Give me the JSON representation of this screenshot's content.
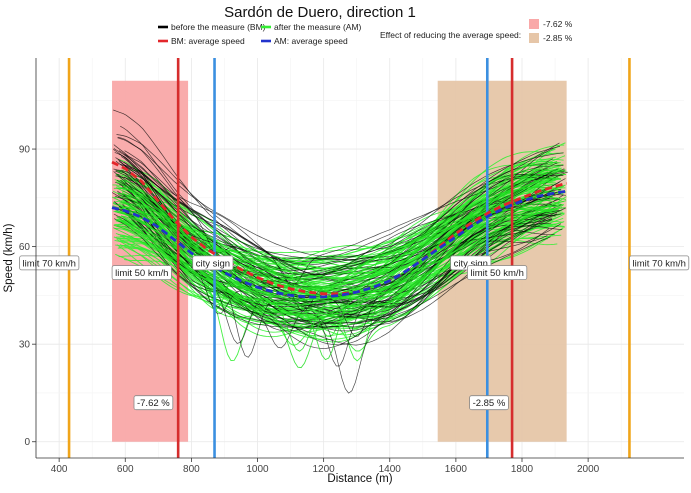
{
  "chart_data": {
    "type": "line",
    "title": "Sardón de Duero, direction 1",
    "xlabel": "Distance (m)",
    "ylabel": "Speed (km/h)",
    "xlim": [
      330,
      2290
    ],
    "ylim": [
      -5,
      118
    ],
    "xticks": [
      400,
      600,
      800,
      1000,
      1200,
      1400,
      1600,
      1800,
      2000
    ],
    "yticks": [
      0,
      30,
      60,
      90
    ],
    "grid": true,
    "legend": {
      "placement": "top-right",
      "lines": [
        {
          "label": "before the measure (BM)",
          "color": "#000000"
        },
        {
          "label": "after the measure (AM)",
          "color": "#33ee33"
        },
        {
          "label": "BM: average speed",
          "color": "#e3262b"
        },
        {
          "label": "AM: average speed",
          "color": "#2233cc"
        }
      ],
      "fill_title": "Effect of reducing the average speed:",
      "fills": [
        {
          "label": "-7.62 %",
          "color": "#f9a8a8"
        },
        {
          "label": "-2.85 %",
          "color": "#e6c6a8"
        }
      ]
    },
    "zones": [
      {
        "x_start": 560,
        "x_end": 790,
        "y_top": 111,
        "color": "#f9a8a8",
        "label": "-7.62 %",
        "label_x": 685,
        "label_y": 12
      },
      {
        "x_start": 1545,
        "x_end": 1935,
        "y_top": 111,
        "color": "#e6c6a8",
        "label": "-2.85 %",
        "label_x": 1700,
        "label_y": 12
      }
    ],
    "vlines": [
      {
        "x": 430,
        "color": "#f0a51a",
        "label": "limit 70 km/h",
        "label_x": 370,
        "label_y": 55
      },
      {
        "x": 760,
        "color": "#d62d2d",
        "label": "limit 50 km/h",
        "label_x": 650,
        "label_y": 52
      },
      {
        "x": 870,
        "color": "#3b8fe0",
        "label": "city sign",
        "label_x": 865,
        "label_y": 55
      },
      {
        "x": 1695,
        "color": "#3b8fe0",
        "label": "city sign",
        "label_x": 1645,
        "label_y": 55
      },
      {
        "x": 1770,
        "color": "#d62d2d",
        "label": "limit 50 km/h",
        "label_x": 1725,
        "label_y": 52
      },
      {
        "x": 2125,
        "color": "#f0a51a",
        "label": "limit 70 km/h",
        "label_x": 2215,
        "label_y": 55
      }
    ],
    "series": [
      {
        "name": "BM: average speed",
        "color": "#e3262b",
        "x": [
          560,
          600,
          650,
          700,
          750,
          800,
          850,
          900,
          950,
          1000,
          1050,
          1100,
          1150,
          1200,
          1250,
          1300,
          1350,
          1400,
          1450,
          1500,
          1550,
          1600,
          1650,
          1700,
          1750,
          1800,
          1850,
          1900,
          1935
        ],
        "values": [
          86,
          84,
          80,
          74,
          68,
          63,
          59,
          56,
          53,
          50.5,
          48.5,
          47,
          46,
          45.5,
          45.5,
          46,
          47.5,
          49.5,
          52.5,
          56,
          60,
          64,
          67.5,
          70.5,
          73,
          75,
          77,
          78.5,
          79.5
        ]
      },
      {
        "name": "AM: average speed",
        "color": "#2233cc",
        "x": [
          560,
          600,
          650,
          700,
          750,
          800,
          850,
          900,
          950,
          1000,
          1050,
          1100,
          1150,
          1200,
          1250,
          1300,
          1350,
          1400,
          1450,
          1500,
          1550,
          1600,
          1650,
          1700,
          1750,
          1800,
          1850,
          1900,
          1935
        ],
        "values": [
          72,
          71,
          69,
          66,
          62,
          58,
          55,
          52,
          49.5,
          47.5,
          46,
          45,
          44.5,
          44.5,
          45,
          46,
          47.5,
          49.5,
          52.5,
          56,
          59.5,
          63,
          66.5,
          69.5,
          72,
          74,
          75.5,
          76.5,
          77
        ]
      }
    ]
  }
}
